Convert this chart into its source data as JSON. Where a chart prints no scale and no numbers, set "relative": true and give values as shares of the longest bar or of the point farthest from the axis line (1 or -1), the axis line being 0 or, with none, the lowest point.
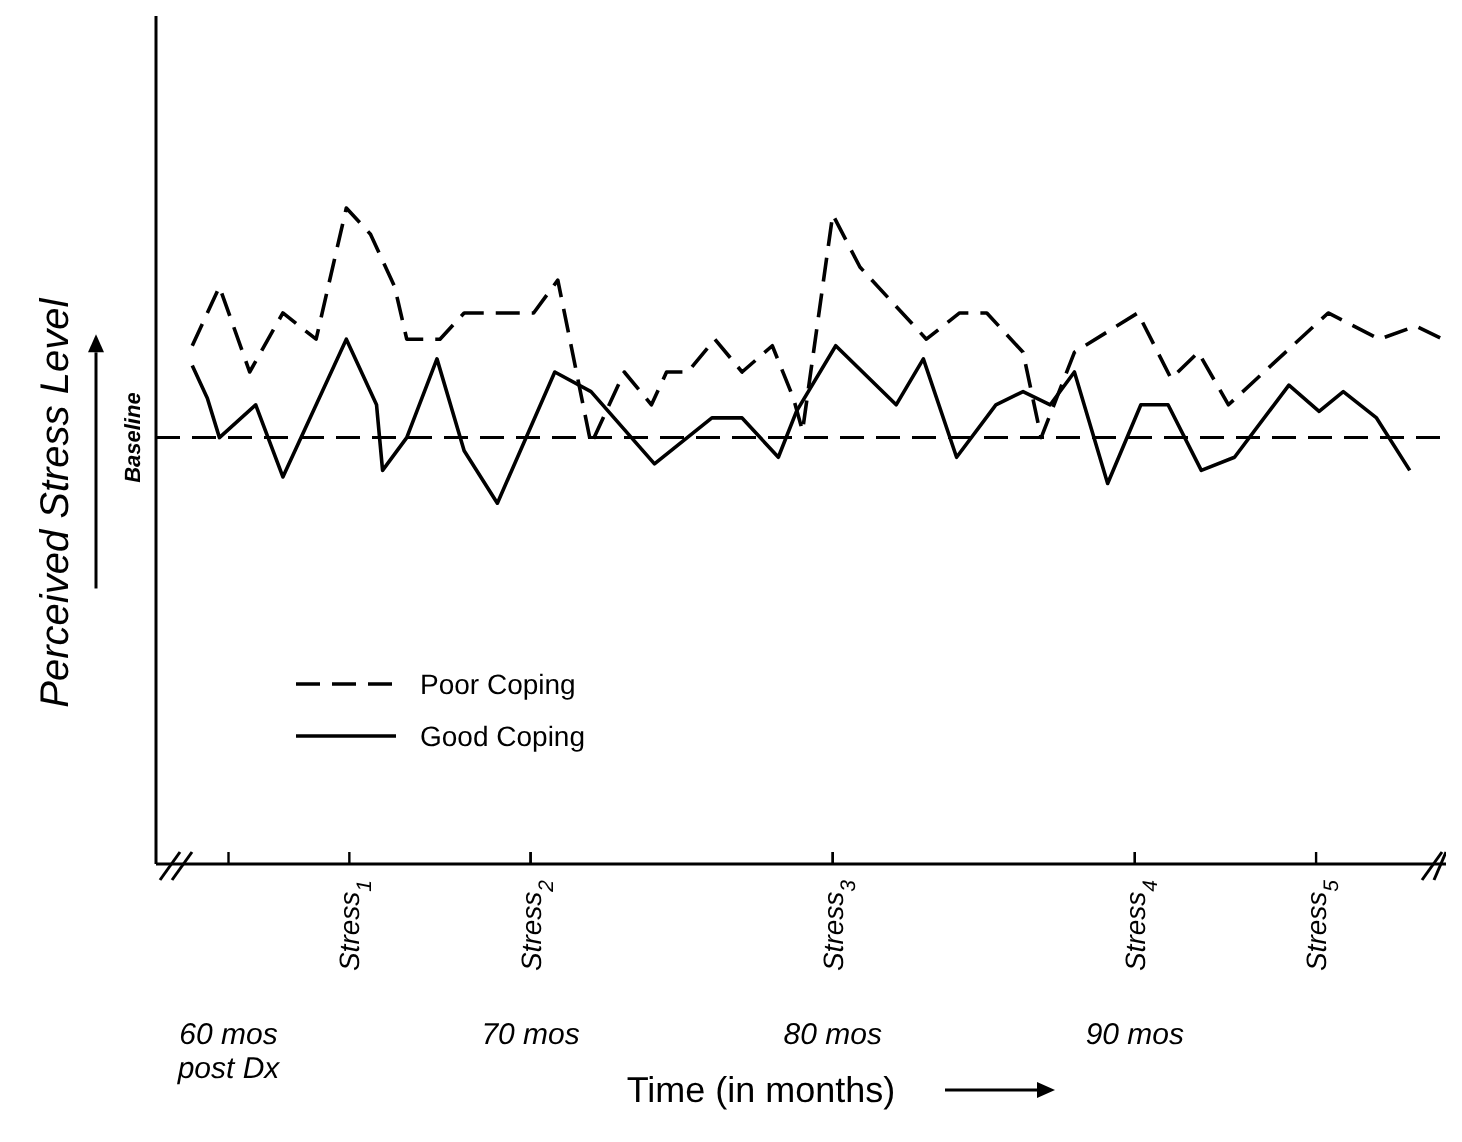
{
  "chart_data": {
    "type": "line",
    "relative": true,
    "xlabel": "Time (in months)",
    "ylabel": "Perceived Stress Level",
    "xlim": [
      57.6,
      100.3
    ],
    "xticks": [
      {
        "value": 60,
        "label": "60 mos\npost Dx"
      },
      {
        "value": 70,
        "label": "70 mos"
      },
      {
        "value": 80,
        "label": "80 mos"
      },
      {
        "value": 90,
        "label": "90 mos"
      }
    ],
    "legend": "bottom left",
    "ref_lines": [
      {
        "axis": "y",
        "value": 0.65,
        "label": "Baseline",
        "line_style": "dashed"
      }
    ],
    "annotations": [
      {
        "text": "Stress$_{1}$",
        "x": 64
      },
      {
        "text": "Stress$_{2}$",
        "x": 70
      },
      {
        "text": "Stress$_{3}$",
        "x": 80
      },
      {
        "text": "Stress$_{4}$",
        "x": 90
      },
      {
        "text": "Stress$_{5}$",
        "x": 96
      }
    ],
    "series": [
      {
        "name": "Poor Coping",
        "color": "#000000",
        "line_style": "dashed",
        "x": [
          58.8,
          59.7,
          60.7,
          61.8,
          62.9,
          63.9,
          64.7,
          65.5,
          65.9,
          67.0,
          67.8,
          70.1,
          70.9,
          72.0,
          73.1,
          74.0,
          74.5,
          75.2,
          76.1,
          77.0,
          78.0,
          78.7,
          79.0,
          80.0,
          80.9,
          83.1,
          84.2,
          85.1,
          86.3,
          86.9,
          88.0,
          90.1,
          91.2,
          92.1,
          93.1,
          96.4,
          98.1,
          99.3,
          100.2
        ],
        "values": [
          0.79,
          0.88,
          0.75,
          0.84,
          0.8,
          1.0,
          0.96,
          0.88,
          0.8,
          0.8,
          0.84,
          0.84,
          0.89,
          0.64,
          0.75,
          0.7,
          0.75,
          0.75,
          0.8,
          0.75,
          0.79,
          0.71,
          0.66,
          0.99,
          0.91,
          0.8,
          0.84,
          0.84,
          0.78,
          0.65,
          0.78,
          0.84,
          0.74,
          0.78,
          0.7,
          0.84,
          0.8,
          0.82,
          0.8
        ]
      },
      {
        "name": "Good Coping",
        "color": "#000000",
        "line_style": "solid",
        "x": [
          58.8,
          59.3,
          59.7,
          60.9,
          61.8,
          63.9,
          64.9,
          65.1,
          65.9,
          66.9,
          67.8,
          68.9,
          70.8,
          72.0,
          74.1,
          76.0,
          77.0,
          78.2,
          78.8,
          80.1,
          82.1,
          83.0,
          84.1,
          85.4,
          86.3,
          87.2,
          88.0,
          89.1,
          90.2,
          91.1,
          92.2,
          93.3,
          95.1,
          96.1,
          96.9,
          98.0,
          99.1
        ],
        "values": [
          0.76,
          0.71,
          0.65,
          0.7,
          0.59,
          0.8,
          0.7,
          0.6,
          0.65,
          0.77,
          0.63,
          0.55,
          0.75,
          0.72,
          0.61,
          0.68,
          0.68,
          0.62,
          0.69,
          0.79,
          0.7,
          0.77,
          0.62,
          0.7,
          0.72,
          0.7,
          0.75,
          0.58,
          0.7,
          0.7,
          0.6,
          0.62,
          0.73,
          0.69,
          0.72,
          0.68,
          0.6
        ]
      }
    ]
  }
}
